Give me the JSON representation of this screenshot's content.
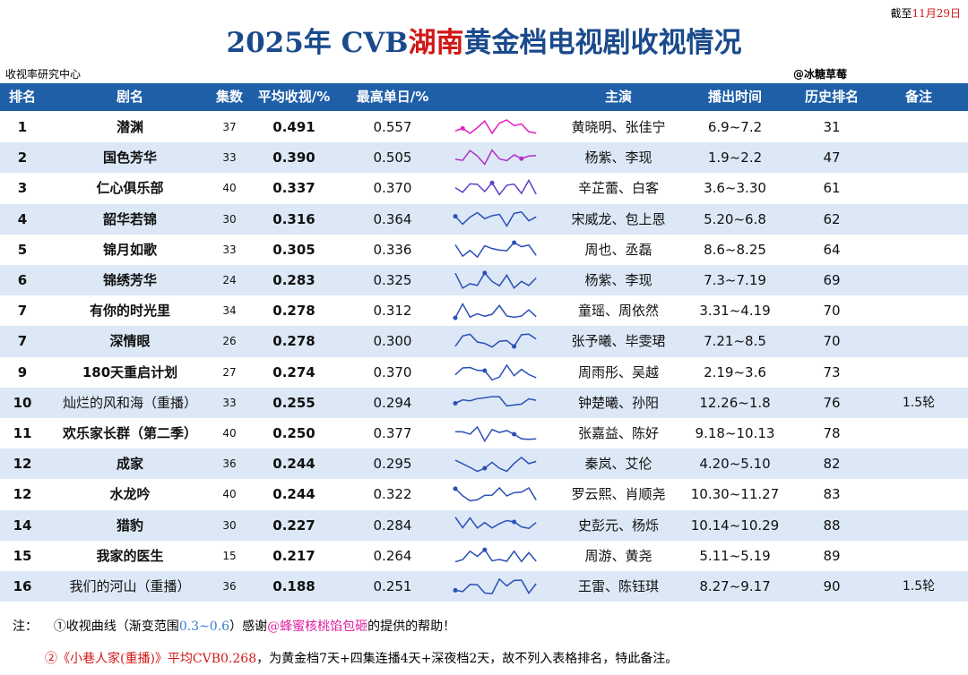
{
  "header": {
    "date_prefix": "截至",
    "date": "11月29日",
    "title_a": "2025年 CVB",
    "title_b": "湖南",
    "title_c": "黄金档电视剧收视情况",
    "source": "收视率研究中心",
    "author": "@冰糖草莓"
  },
  "table": {
    "columns": [
      "排名",
      "剧名",
      "集数",
      "平均收视/%",
      "最高单日/%",
      "主演",
      "播出时间",
      "历史排名",
      "备注"
    ],
    "rows": [
      [
        "1",
        "潜渊",
        "37",
        "0.491",
        "0.557",
        "黄晓明、张佳宁",
        "6.9~7.2",
        "31"
      ],
      [
        "2",
        "国色芳华",
        "33",
        "0.390",
        "0.505",
        "杨紫、李现",
        "1.9~2.2",
        "47"
      ],
      [
        "3",
        "仁心俱乐部",
        "40",
        "0.337",
        "0.370",
        "辛芷蕾、白客",
        "3.6~3.30",
        "61"
      ],
      [
        "4",
        "韶华若锦",
        "30",
        "0.316",
        "0.364",
        "宋威龙、包上恩",
        "5.20~6.8",
        "62"
      ],
      [
        "5",
        "锦月如歌",
        "33",
        "0.305",
        "0.336",
        "周也、丞磊",
        "8.6~8.25",
        "64"
      ],
      [
        "6",
        "锦绣芳华",
        "24",
        "0.283",
        "0.325",
        "杨紫、李现",
        "7.3~7.19",
        "69"
      ],
      [
        "7",
        "有你的时光里",
        "34",
        "0.278",
        "0.312",
        "童瑶、周依然",
        "3.31~4.19",
        "70"
      ],
      [
        "7",
        "深情眼",
        "26",
        "0.278",
        "0.300",
        "张予曦、毕雯珺",
        "7.21~8.5",
        "70"
      ],
      [
        "9",
        "180天重启计划",
        "27",
        "0.274",
        "0.370",
        "周雨彤、吴越",
        "2.19~3.6",
        "73"
      ],
      [
        "10",
        "灿烂的风和海（重播）",
        "33",
        "0.255",
        "0.294",
        "钟楚曦、孙阳",
        "12.26~1.8",
        "76",
        "1.5轮"
      ],
      [
        "11",
        "欢乐家长群（第二季）",
        "40",
        "0.250",
        "0.377",
        "张嘉益、陈好",
        "9.18~10.13",
        "78"
      ],
      [
        "12",
        "成家",
        "36",
        "0.244",
        "0.295",
        "秦岚、艾伦",
        "4.20~5.10",
        "82"
      ],
      [
        "12",
        "水龙吟",
        "40",
        "0.244",
        "0.322",
        "罗云熙、肖顺尧",
        "10.30~11.27",
        "83"
      ],
      [
        "14",
        "猎豹",
        "30",
        "0.227",
        "0.284",
        "史彭元、杨烁",
        "10.14~10.29",
        "88"
      ],
      [
        "15",
        "我家的医生",
        "15",
        "0.217",
        "0.264",
        "周游、黄尧",
        "5.11~5.19",
        "89"
      ],
      [
        "16",
        "我们的河山（重播）",
        "36",
        "0.188",
        "0.251",
        "王雷、陈钰琪",
        "8.27~9.17",
        "90",
        "1.5轮"
      ]
    ]
  },
  "notes": [
    {
      "parts": [
        "注：",
        "①收视曲线（渐变范围",
        "0.3~0.6",
        "）感谢",
        "@蜂蜜核桃馅包砸",
        "的提供的帮助！"
      ]
    },
    {
      "parts": [
        "②",
        "《小巷人家(重播)》平均CVB0.268",
        "，为黄金档7天+四集连播4天+深夜档2天，故不列入表格排名，特此备注。"
      ]
    }
  ]
}
